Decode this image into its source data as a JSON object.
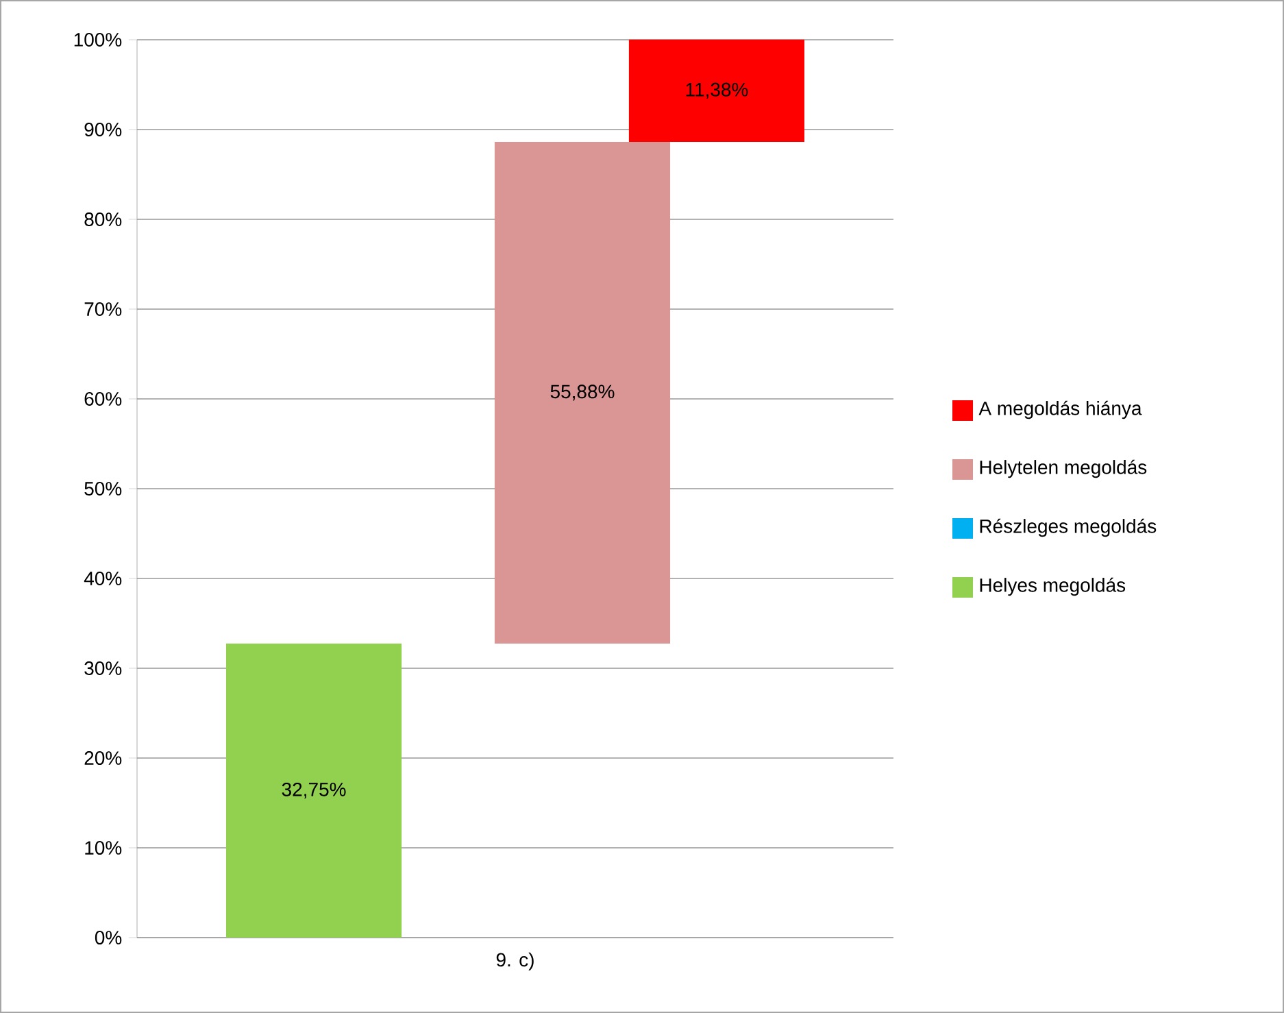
{
  "chart_data": {
    "type": "bar",
    "stacked": true,
    "categories": [
      "9. c)"
    ],
    "ylim": [
      0,
      100
    ],
    "yticks": [
      {
        "value": 0,
        "label": "0%"
      },
      {
        "value": 10,
        "label": "10%"
      },
      {
        "value": 20,
        "label": "20%"
      },
      {
        "value": 30,
        "label": "30%"
      },
      {
        "value": 40,
        "label": "40%"
      },
      {
        "value": 50,
        "label": "50%"
      },
      {
        "value": 60,
        "label": "60%"
      },
      {
        "value": 70,
        "label": "70%"
      },
      {
        "value": 80,
        "label": "80%"
      },
      {
        "value": 90,
        "label": "90%"
      },
      {
        "value": 100,
        "label": "100%"
      }
    ],
    "grid": "y",
    "legend": "right",
    "series": [
      {
        "name": "Helyes megoldás",
        "color": "#92d050",
        "values": [
          32.75
        ],
        "value_labels": [
          "32,75%"
        ]
      },
      {
        "name": "Részleges megoldás",
        "color": "#00b0f0",
        "values": [
          0
        ],
        "value_labels": [
          null
        ]
      },
      {
        "name": "Helytelen megoldás",
        "color": "#d99694",
        "values": [
          55.88
        ],
        "value_labels": [
          "55,88%"
        ]
      },
      {
        "name": "A megoldás hiánya",
        "color": "#ff0000",
        "values": [
          11.38
        ],
        "value_labels": [
          "11,38%"
        ]
      }
    ]
  }
}
